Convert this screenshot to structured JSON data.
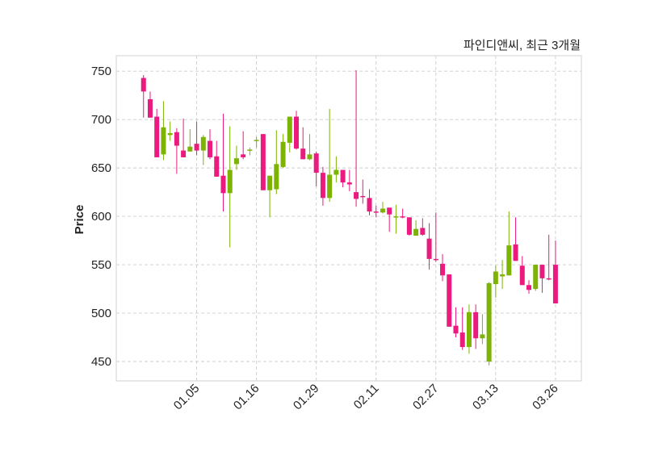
{
  "chart_data": {
    "type": "candlestick",
    "title": "파인디앤씨, 최근 3개월",
    "xlabel": "",
    "ylabel": "Price",
    "ylim": [
      430,
      766
    ],
    "xlim": [
      -4.1,
      65.9
    ],
    "grid": true,
    "colors": {
      "up": "#7cb305",
      "down": "#ea1a7f",
      "grid": "#cccccc",
      "frame": "#d9d9d9"
    },
    "yticks": [
      450,
      500,
      550,
      600,
      650,
      700,
      750
    ],
    "xticks": [
      {
        "index": 8,
        "label": "01.05"
      },
      {
        "index": 17,
        "label": "01.16"
      },
      {
        "index": 26,
        "label": "01.29"
      },
      {
        "index": 35,
        "label": "02.11"
      },
      {
        "index": 44,
        "label": "02.27"
      },
      {
        "index": 53,
        "label": "03.13"
      },
      {
        "index": 62,
        "label": "03.26"
      }
    ],
    "ohlc": [
      [
        743,
        746,
        702,
        729
      ],
      [
        721,
        729,
        702,
        702
      ],
      [
        703,
        711,
        661,
        661
      ],
      [
        664,
        719,
        658,
        692
      ],
      [
        684,
        698,
        678,
        686
      ],
      [
        687,
        691,
        644,
        673
      ],
      [
        668,
        701,
        661,
        661
      ],
      [
        667,
        690,
        667,
        672
      ],
      [
        675,
        698,
        663,
        668
      ],
      [
        668,
        684,
        653,
        682
      ],
      [
        678,
        690,
        659,
        661
      ],
      [
        662,
        678,
        641,
        641
      ],
      [
        642,
        706,
        605,
        624
      ],
      [
        624,
        693,
        568,
        648
      ],
      [
        654,
        673,
        648,
        660
      ],
      [
        664,
        688,
        659,
        661
      ],
      [
        668,
        671,
        663,
        669
      ],
      [
        678,
        682,
        671,
        679
      ],
      [
        685,
        685,
        627,
        627
      ],
      [
        627,
        642,
        599,
        642
      ],
      [
        628,
        689,
        623,
        654
      ],
      [
        651,
        685,
        650,
        677
      ],
      [
        676,
        703,
        666,
        703
      ],
      [
        703,
        709,
        669,
        670
      ],
      [
        670,
        692,
        659,
        659
      ],
      [
        659,
        685,
        658,
        664
      ],
      [
        665,
        667,
        631,
        645
      ],
      [
        645,
        651,
        611,
        619
      ],
      [
        619,
        711,
        615,
        643
      ],
      [
        643,
        662,
        635,
        648
      ],
      [
        648,
        648,
        630,
        635
      ],
      [
        635,
        648,
        626,
        633
      ],
      [
        625,
        751,
        610,
        618
      ],
      [
        621,
        638,
        613,
        620
      ],
      [
        619,
        628,
        601,
        605
      ],
      [
        605,
        611,
        599,
        604
      ],
      [
        604,
        615,
        603,
        608
      ],
      [
        609,
        609,
        584,
        602
      ],
      [
        600,
        612,
        582,
        600
      ],
      [
        600,
        608,
        598,
        599
      ],
      [
        599,
        599,
        580,
        581
      ],
      [
        580,
        596,
        580,
        587
      ],
      [
        588,
        598,
        580,
        581
      ],
      [
        577,
        593,
        545,
        556
      ],
      [
        556,
        604,
        553,
        555
      ],
      [
        551,
        561,
        533,
        539
      ],
      [
        540,
        540,
        486,
        486
      ],
      [
        487,
        506,
        475,
        479
      ],
      [
        480,
        506,
        462,
        465
      ],
      [
        465,
        509,
        458,
        501
      ],
      [
        501,
        509,
        463,
        474
      ],
      [
        474,
        499,
        468,
        478
      ],
      [
        450,
        532,
        446,
        531
      ],
      [
        530,
        549,
        516,
        543
      ],
      [
        538,
        555,
        525,
        540
      ],
      [
        539,
        605,
        539,
        570
      ],
      [
        571,
        599,
        554,
        554
      ],
      [
        549,
        559,
        529,
        529
      ],
      [
        529,
        534,
        520,
        524
      ],
      [
        525,
        550,
        523,
        550
      ],
      [
        550,
        550,
        521,
        536
      ],
      [
        536,
        581,
        534,
        535
      ],
      [
        550,
        575,
        510,
        510
      ]
    ]
  }
}
